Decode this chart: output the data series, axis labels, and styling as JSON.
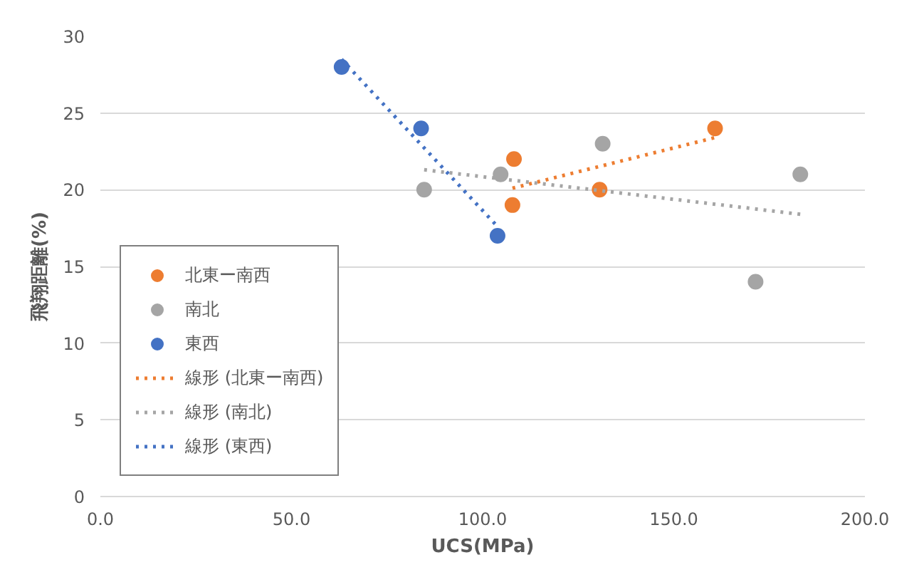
{
  "chart_data": {
    "type": "scatter",
    "xlabel": "UCS(MPa)",
    "ylabel": "飛翔距離(%)",
    "xlim": [
      0,
      200
    ],
    "xticks": [
      {
        "value": 0,
        "label": "0.0"
      },
      {
        "value": 50,
        "label": "50.0"
      },
      {
        "value": 100,
        "label": "100.0"
      },
      {
        "value": 150,
        "label": "150.0"
      },
      {
        "value": 200,
        "label": "200.0"
      }
    ],
    "ylim": [
      0,
      30
    ],
    "yticks": [
      0,
      5,
      10,
      15,
      20,
      25,
      30
    ],
    "grid": "y",
    "legend": "bottom left",
    "marker": "circle",
    "series": [
      {
        "name": "北東ー南西",
        "color": "#ed7d31",
        "x": [
          108.2,
          107.8,
          130.6,
          160.8
        ],
        "values": [
          22,
          19,
          20,
          24
        ]
      },
      {
        "name": "南北",
        "color": "#a5a5a5",
        "x": [
          84.7,
          104.7,
          131.4,
          171.4,
          183.1
        ],
        "values": [
          20,
          21,
          23,
          14,
          21
        ]
      },
      {
        "name": "東西",
        "color": "#4472c4",
        "x": [
          63.1,
          83.9,
          103.9
        ],
        "values": [
          28,
          24,
          17
        ]
      },
      {
        "name": "線形 (北東ー南西)",
        "type": "line",
        "line_style": "dotted",
        "marker": "none",
        "color": "#ed7d31",
        "x": [
          107.8,
          160.8
        ],
        "values": [
          20.1,
          23.4
        ]
      },
      {
        "name": "線形 (南北)",
        "type": "line",
        "line_style": "dotted",
        "marker": "none",
        "color": "#a5a5a5",
        "x": [
          84.7,
          183.1
        ],
        "values": [
          21.3,
          18.4
        ]
      },
      {
        "name": "線形 (東西)",
        "type": "line",
        "line_style": "dotted",
        "marker": "none",
        "color": "#4472c4",
        "x": [
          63.1,
          103.9
        ],
        "values": [
          28.5,
          17.6
        ]
      }
    ]
  }
}
